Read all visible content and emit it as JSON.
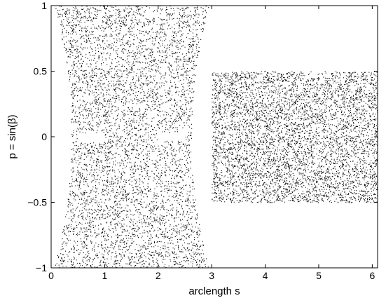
{
  "chart_data": {
    "type": "scatter",
    "title": "",
    "xlabel": "arclength s",
    "ylabel": "p = sin(β)",
    "xlim": [
      0,
      6.1
    ],
    "ylim": [
      -1,
      1
    ],
    "x_ticks": [
      0,
      1,
      2,
      3,
      4,
      5,
      6
    ],
    "x_tick_labels": [
      "0",
      "1",
      "2",
      "3",
      "4",
      "5",
      "6"
    ],
    "y_ticks": [
      -1,
      -0.5,
      0,
      0.5,
      1
    ],
    "y_tick_labels": [
      "−1",
      "−0.5",
      "0",
      "0.5",
      "1"
    ],
    "grid": false,
    "legend": "none",
    "marker_color": "#000000",
    "series": [
      {
        "region": "curved-wall segment (hourglass-shaped filled region)",
        "x_range": [
          0.05,
          2.95
        ],
        "p_range": [
          -1,
          1
        ],
        "p_abs_min_at_edges": 0.0,
        "p_abs_at_x_edges_near_boundary": 1.0,
        "inner_boundary_x_at_p0": [
          0.38,
          2.62
        ],
        "excluded_horizontal_strip": {
          "p": [
            -0.03,
            0.03
          ],
          "x": [
            0.5,
            2.5
          ],
          "open_gap_x": [
            1.0,
            2.0
          ]
        },
        "density": "uniform random",
        "n_points": 9000
      },
      {
        "region": "flat-wall segment (rectangular filled region)",
        "x_range": [
          3.0,
          6.1
        ],
        "p_range": [
          -0.5,
          0.5
        ],
        "density": "uniform random",
        "n_points": 7000
      }
    ]
  }
}
